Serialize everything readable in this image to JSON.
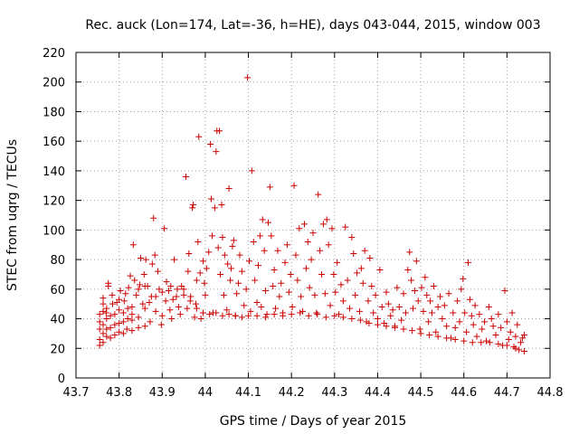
{
  "chart_data": {
    "type": "scatter",
    "title": "Rec. auck (Lon=174, Lat=-36, h=HE), days 043-044, 2015, window 003",
    "xlabel": "GPS time / Days of year 2015",
    "ylabel": "STEC from uqrg / TECUs",
    "xlim": [
      43.7,
      44.8
    ],
    "ylim": [
      0,
      220
    ],
    "xticks": [
      "43.7",
      "43.8",
      "43.9",
      "44",
      "44.1",
      "44.2",
      "44.3",
      "44.4",
      "44.5",
      "44.6",
      "44.7",
      "44.8"
    ],
    "yticks": [
      "0",
      "20",
      "40",
      "60",
      "80",
      "100",
      "120",
      "140",
      "160",
      "180",
      "200",
      "220"
    ],
    "grid": true,
    "marker": "plus",
    "color": "#cc0000",
    "points": [
      [
        43.755,
        22
      ],
      [
        43.755,
        26
      ],
      [
        43.755,
        33
      ],
      [
        43.755,
        38
      ],
      [
        43.755,
        43
      ],
      [
        43.763,
        24
      ],
      [
        43.763,
        30
      ],
      [
        43.763,
        36
      ],
      [
        43.763,
        45
      ],
      [
        43.763,
        50
      ],
      [
        43.763,
        54
      ],
      [
        43.771,
        28
      ],
      [
        43.771,
        33
      ],
      [
        43.771,
        40
      ],
      [
        43.771,
        47
      ],
      [
        43.775,
        62
      ],
      [
        43.775,
        64
      ],
      [
        43.78,
        27
      ],
      [
        43.78,
        34
      ],
      [
        43.78,
        42
      ],
      [
        43.784,
        56
      ],
      [
        43.79,
        29
      ],
      [
        43.79,
        36
      ],
      [
        43.79,
        43
      ],
      [
        43.795,
        51
      ],
      [
        43.8,
        31
      ],
      [
        43.8,
        37
      ],
      [
        43.8,
        46
      ],
      [
        43.803,
        59
      ],
      [
        43.81,
        30
      ],
      [
        43.81,
        38
      ],
      [
        43.81,
        44
      ],
      [
        43.812,
        52
      ],
      [
        43.818,
        33
      ],
      [
        43.82,
        40
      ],
      [
        43.82,
        47
      ],
      [
        43.822,
        61
      ],
      [
        43.826,
        69
      ],
      [
        43.83,
        32
      ],
      [
        43.83,
        39
      ],
      [
        43.83,
        48
      ],
      [
        43.833,
        90
      ],
      [
        43.836,
        66
      ],
      [
        43.84,
        56
      ],
      [
        43.845,
        34
      ],
      [
        43.845,
        41
      ],
      [
        43.848,
        63
      ],
      [
        43.85,
        81
      ],
      [
        43.855,
        50
      ],
      [
        43.858,
        70
      ],
      [
        43.86,
        35
      ],
      [
        43.86,
        47
      ],
      [
        43.862,
        80
      ],
      [
        43.866,
        62
      ],
      [
        43.872,
        38
      ],
      [
        43.875,
        55
      ],
      [
        43.877,
        77
      ],
      [
        43.88,
        108
      ],
      [
        43.883,
        83
      ],
      [
        43.885,
        45
      ],
      [
        43.89,
        72
      ],
      [
        43.893,
        60
      ],
      [
        43.898,
        36
      ],
      [
        43.9,
        42
      ],
      [
        43.905,
        101
      ],
      [
        43.908,
        52
      ],
      [
        43.91,
        65
      ],
      [
        43.915,
        59
      ],
      [
        43.918,
        46
      ],
      [
        43.922,
        40
      ],
      [
        43.925,
        53
      ],
      [
        43.928,
        80
      ],
      [
        43.933,
        55
      ],
      [
        43.938,
        48
      ],
      [
        43.942,
        43
      ],
      [
        43.945,
        62
      ],
      [
        43.95,
        60
      ],
      [
        43.955,
        136
      ],
      [
        43.958,
        47
      ],
      [
        43.96,
        72
      ],
      [
        43.962,
        84
      ],
      [
        43.966,
        55
      ],
      [
        43.97,
        115
      ],
      [
        43.972,
        117
      ],
      [
        43.975,
        41
      ],
      [
        43.978,
        50
      ],
      [
        43.98,
        66
      ],
      [
        43.983,
        92
      ],
      [
        43.985,
        163
      ],
      [
        43.988,
        71
      ],
      [
        43.99,
        40
      ],
      [
        43.995,
        79
      ],
      [
        43.998,
        64
      ],
      [
        44.0,
        56
      ],
      [
        44.003,
        74
      ],
      [
        44.008,
        85
      ],
      [
        44.012,
        158
      ],
      [
        44.014,
        121
      ],
      [
        44.016,
        96
      ],
      [
        44.018,
        44
      ],
      [
        44.022,
        115
      ],
      [
        44.025,
        153
      ],
      [
        44.027,
        167
      ],
      [
        44.03,
        88
      ],
      [
        44.033,
        167
      ],
      [
        44.035,
        70
      ],
      [
        44.038,
        117
      ],
      [
        44.04,
        95
      ],
      [
        44.043,
        56
      ],
      [
        44.045,
        83
      ],
      [
        44.05,
        46
      ],
      [
        44.052,
        77
      ],
      [
        44.055,
        128
      ],
      [
        44.058,
        66
      ],
      [
        44.06,
        74
      ],
      [
        44.063,
        89
      ],
      [
        44.066,
        93
      ],
      [
        44.07,
        42
      ],
      [
        44.073,
        57
      ],
      [
        44.077,
        64
      ],
      [
        44.08,
        83
      ],
      [
        44.085,
        72
      ],
      [
        44.09,
        49
      ],
      [
        44.095,
        60
      ],
      [
        44.098,
        203
      ],
      [
        44.102,
        79
      ],
      [
        44.105,
        45
      ],
      [
        44.108,
        140
      ],
      [
        44.112,
        92
      ],
      [
        44.115,
        66
      ],
      [
        44.12,
        51
      ],
      [
        44.123,
        76
      ],
      [
        44.127,
        96
      ],
      [
        44.13,
        48
      ],
      [
        44.133,
        107
      ],
      [
        44.137,
        86
      ],
      [
        44.14,
        59
      ],
      [
        44.143,
        43
      ],
      [
        44.146,
        105
      ],
      [
        44.15,
        129
      ],
      [
        44.153,
        96
      ],
      [
        44.157,
        62
      ],
      [
        44.16,
        73
      ],
      [
        44.163,
        47
      ],
      [
        44.168,
        86
      ],
      [
        44.172,
        55
      ],
      [
        44.176,
        64
      ],
      [
        44.18,
        44
      ],
      [
        44.185,
        78
      ],
      [
        44.19,
        90
      ],
      [
        44.194,
        58
      ],
      [
        44.198,
        70
      ],
      [
        44.202,
        48
      ],
      [
        44.206,
        130
      ],
      [
        44.21,
        83
      ],
      [
        44.214,
        66
      ],
      [
        44.218,
        101
      ],
      [
        44.222,
        55
      ],
      [
        44.226,
        45
      ],
      [
        44.23,
        104
      ],
      [
        44.234,
        74
      ],
      [
        44.238,
        92
      ],
      [
        44.242,
        61
      ],
      [
        44.246,
        80
      ],
      [
        44.25,
        98
      ],
      [
        44.254,
        56
      ],
      [
        44.258,
        44
      ],
      [
        44.262,
        124
      ],
      [
        44.266,
        86
      ],
      [
        44.27,
        70
      ],
      [
        44.274,
        104
      ],
      [
        44.278,
        57
      ],
      [
        44.282,
        107
      ],
      [
        44.286,
        90
      ],
      [
        44.29,
        49
      ],
      [
        44.294,
        101
      ],
      [
        44.298,
        70
      ],
      [
        44.302,
        58
      ],
      [
        44.306,
        78
      ],
      [
        44.31,
        43
      ],
      [
        44.315,
        63
      ],
      [
        44.32,
        52
      ],
      [
        44.325,
        102
      ],
      [
        44.33,
        66
      ],
      [
        44.335,
        47
      ],
      [
        44.34,
        95
      ],
      [
        44.344,
        84
      ],
      [
        44.348,
        56
      ],
      [
        44.352,
        71
      ],
      [
        44.358,
        45
      ],
      [
        44.362,
        74
      ],
      [
        44.366,
        64
      ],
      [
        44.37,
        86
      ],
      [
        44.374,
        38
      ],
      [
        44.378,
        52
      ],
      [
        44.382,
        81
      ],
      [
        44.386,
        62
      ],
      [
        44.39,
        44
      ],
      [
        44.395,
        56
      ],
      [
        44.4,
        40
      ],
      [
        44.405,
        73
      ],
      [
        44.41,
        48
      ],
      [
        44.415,
        37
      ],
      [
        44.42,
        58
      ],
      [
        44.425,
        50
      ],
      [
        44.43,
        42
      ],
      [
        44.435,
        46
      ],
      [
        44.44,
        35
      ],
      [
        44.445,
        61
      ],
      [
        44.45,
        48
      ],
      [
        44.455,
        39
      ],
      [
        44.46,
        57
      ],
      [
        44.465,
        44
      ],
      [
        44.47,
        73
      ],
      [
        44.474,
        85
      ],
      [
        44.478,
        66
      ],
      [
        44.482,
        47
      ],
      [
        44.486,
        59
      ],
      [
        44.49,
        79
      ],
      [
        44.494,
        52
      ],
      [
        44.498,
        33
      ],
      [
        44.502,
        61
      ],
      [
        44.506,
        45
      ],
      [
        44.51,
        68
      ],
      [
        44.514,
        56
      ],
      [
        44.518,
        38
      ],
      [
        44.522,
        52
      ],
      [
        44.526,
        44
      ],
      [
        44.53,
        62
      ],
      [
        44.535,
        31
      ],
      [
        44.54,
        48
      ],
      [
        44.545,
        55
      ],
      [
        44.55,
        40
      ],
      [
        44.555,
        49
      ],
      [
        44.56,
        35
      ],
      [
        44.565,
        57
      ],
      [
        44.57,
        27
      ],
      [
        44.575,
        44
      ],
      [
        44.58,
        34
      ],
      [
        44.585,
        52
      ],
      [
        44.59,
        38
      ],
      [
        44.594,
        60
      ],
      [
        44.598,
        67
      ],
      [
        44.602,
        44
      ],
      [
        44.606,
        31
      ],
      [
        44.61,
        78
      ],
      [
        44.614,
        53
      ],
      [
        44.618,
        42
      ],
      [
        44.622,
        36
      ],
      [
        44.626,
        49
      ],
      [
        44.63,
        28
      ],
      [
        44.636,
        43
      ],
      [
        44.642,
        33
      ],
      [
        44.648,
        38
      ],
      [
        44.652,
        25
      ],
      [
        44.658,
        48
      ],
      [
        44.664,
        40
      ],
      [
        44.668,
        35
      ],
      [
        44.674,
        29
      ],
      [
        44.68,
        43
      ],
      [
        44.686,
        34
      ],
      [
        44.69,
        22
      ],
      [
        44.695,
        59
      ],
      [
        44.7,
        38
      ],
      [
        44.704,
        26
      ],
      [
        44.708,
        31
      ],
      [
        44.712,
        44
      ],
      [
        44.716,
        21
      ],
      [
        44.72,
        28
      ],
      [
        44.724,
        36
      ],
      [
        44.728,
        19
      ],
      [
        44.732,
        24
      ],
      [
        44.736,
        27
      ],
      [
        44.74,
        29
      ],
      [
        43.77,
        44
      ],
      [
        43.785,
        50
      ],
      [
        43.8,
        53
      ],
      [
        43.815,
        57
      ],
      [
        43.83,
        43
      ],
      [
        43.845,
        60
      ],
      [
        43.86,
        62
      ],
      [
        43.87,
        51
      ],
      [
        43.885,
        55
      ],
      [
        43.9,
        58
      ],
      [
        43.92,
        62
      ],
      [
        43.935,
        60
      ],
      [
        43.95,
        56
      ],
      [
        43.965,
        52
      ],
      [
        43.98,
        47
      ],
      [
        43.995,
        44
      ],
      [
        44.01,
        43
      ],
      [
        44.025,
        44
      ],
      [
        44.04,
        42
      ],
      [
        44.055,
        43
      ],
      [
        44.07,
        42
      ],
      [
        44.085,
        41
      ],
      [
        44.1,
        42
      ],
      [
        44.12,
        42
      ],
      [
        44.14,
        41
      ],
      [
        44.16,
        43
      ],
      [
        44.18,
        42
      ],
      [
        44.2,
        43
      ],
      [
        44.22,
        44
      ],
      [
        44.24,
        42
      ],
      [
        44.26,
        43
      ],
      [
        44.28,
        41
      ],
      [
        44.3,
        42
      ],
      [
        44.32,
        41
      ],
      [
        44.34,
        40
      ],
      [
        44.36,
        39
      ],
      [
        44.38,
        37
      ],
      [
        44.4,
        36
      ],
      [
        44.42,
        35
      ],
      [
        44.44,
        34
      ],
      [
        44.46,
        33
      ],
      [
        44.48,
        32
      ],
      [
        44.5,
        30
      ],
      [
        44.52,
        29
      ],
      [
        44.54,
        28
      ],
      [
        44.56,
        27
      ],
      [
        44.58,
        26
      ],
      [
        44.6,
        25
      ],
      [
        44.62,
        24
      ],
      [
        44.64,
        24
      ],
      [
        44.66,
        24
      ],
      [
        44.68,
        23
      ],
      [
        44.7,
        22
      ],
      [
        44.72,
        20
      ],
      [
        44.74,
        18
      ]
    ]
  }
}
